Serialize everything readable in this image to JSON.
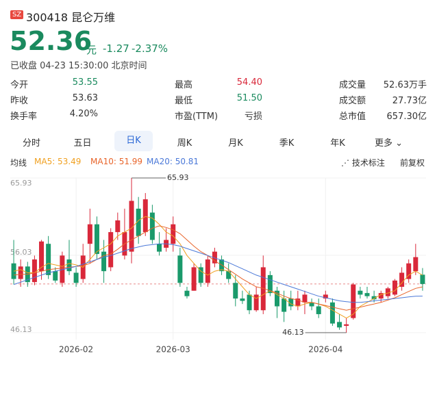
{
  "header": {
    "market": "SZ",
    "code": "300418",
    "name": "昆仑万维",
    "price": "52.36",
    "unit": "元",
    "change": "-1.27",
    "change_pct": "-2.37%",
    "status": "已收盘 04-23 15:30:00 北京时间"
  },
  "stats": [
    [
      {
        "label": "今开",
        "value": "53.55"
      },
      {
        "label": "最高",
        "value": "54.40"
      },
      {
        "label": "成交量",
        "value": "52.63万手"
      }
    ],
    [
      {
        "label": "昨收",
        "value": "53.63"
      },
      {
        "label": "最低",
        "value": "51.50"
      },
      {
        "label": "成交额",
        "value": "27.73亿"
      }
    ],
    [
      {
        "label": "换手率",
        "value": "4.20%"
      },
      {
        "label": "市盈(TTM)",
        "value": "亏损"
      },
      {
        "label": "总市值",
        "value": "657.30亿"
      }
    ]
  ],
  "tabs": [
    "分时",
    "五日",
    "日K",
    "周K",
    "月K",
    "季K",
    "年K",
    "更多"
  ],
  "selected_tab": "日K",
  "ma_title": "均线",
  "tools": [
    "技术标注",
    "前复权"
  ],
  "chart_data": {
    "type": "candlestick",
    "categories": [
      null,
      null,
      null,
      null,
      null,
      null,
      null,
      null,
      null,
      "2026-02",
      null,
      null,
      null,
      null,
      null,
      null,
      null,
      null,
      null,
      null,
      null,
      null,
      null,
      "2026-03",
      null,
      null,
      null,
      null,
      null,
      null,
      null,
      null,
      null,
      null,
      null,
      null,
      null,
      null,
      null,
      null,
      null,
      null,
      null,
      null,
      null,
      "2026-04",
      null,
      null,
      null,
      null,
      null,
      null,
      null,
      null,
      null,
      null,
      null,
      null,
      null,
      null
    ],
    "open": [
      55.0,
      53.0,
      54.6,
      52.6,
      54.0,
      57.5,
      54.0,
      52.5,
      55.5,
      53.8,
      53.0,
      57.5,
      60.0,
      56.5,
      54.5,
      59.0,
      56.0,
      56.5,
      62.0,
      59.0,
      61.5,
      57.5,
      57.0,
      57.5,
      56.0,
      51.5,
      51.5,
      54.5,
      52.5,
      55.0,
      55.5,
      54.0,
      52.5,
      50.5,
      51.0,
      49.0,
      49.0,
      53.5,
      51.5,
      50.5,
      50.5,
      49.5,
      50.0,
      50.0,
      49.5,
      50.5,
      50.0,
      47.5,
      47.0,
      48.0,
      51.5,
      51.2,
      50.8,
      50.5,
      50.8,
      51.0,
      52.0,
      53.0,
      54.0,
      53.55
    ],
    "high": [
      58.0,
      55.5,
      55.2,
      56.0,
      58.0,
      58.5,
      54.5,
      56.5,
      58.0,
      54.5,
      57.5,
      62.0,
      61.0,
      58.0,
      59.5,
      61.5,
      62.0,
      65.93,
      63.5,
      64.0,
      62.5,
      59.0,
      59.5,
      61.0,
      57.0,
      52.0,
      55.0,
      55.0,
      56.0,
      57.0,
      56.0,
      55.0,
      53.5,
      51.5,
      51.5,
      52.0,
      56.0,
      54.0,
      52.0,
      51.5,
      51.5,
      51.5,
      51.5,
      50.5,
      50.5,
      51.5,
      50.5,
      48.5,
      48.0,
      52.5,
      52.0,
      52.0,
      51.5,
      51.5,
      52.0,
      53.0,
      54.5,
      55.5,
      57.5,
      54.4
    ],
    "low": [
      52.3,
      52.0,
      52.0,
      52.2,
      52.9,
      53.0,
      52.5,
      52.0,
      53.5,
      52.0,
      52.5,
      55.0,
      55.5,
      52.5,
      54.0,
      58.0,
      55.5,
      55.0,
      57.5,
      58.5,
      57.5,
      56.0,
      56.5,
      56.5,
      52.0,
      50.5,
      51.5,
      52.0,
      52.0,
      54.5,
      53.5,
      52.5,
      49.5,
      49.8,
      48.5,
      48.8,
      48.5,
      50.8,
      48.0,
      47.5,
      49.0,
      49.0,
      48.5,
      49.0,
      48.0,
      50.0,
      47.0,
      46.5,
      46.13,
      47.8,
      50.5,
      50.5,
      50.0,
      50.0,
      50.5,
      50.8,
      51.5,
      52.5,
      53.5,
      51.5
    ],
    "close": [
      53.0,
      54.6,
      52.6,
      55.5,
      57.8,
      53.5,
      52.8,
      56.0,
      54.0,
      52.5,
      56.0,
      60.0,
      56.2,
      54.0,
      59.0,
      60.5,
      59.0,
      63.0,
      58.5,
      63.2,
      58.0,
      56.5,
      58.0,
      60.0,
      52.5,
      50.8,
      54.5,
      52.5,
      55.5,
      56.5,
      54.0,
      53.0,
      50.5,
      50.2,
      49.0,
      51.0,
      54.5,
      51.2,
      49.5,
      48.8,
      49.5,
      50.5,
      51.0,
      49.5,
      48.5,
      51.0,
      47.3,
      46.8,
      47.2,
      52.3,
      51.0,
      50.8,
      50.4,
      51.2,
      51.8,
      52.8,
      53.8,
      55.0,
      55.8,
      52.36
    ],
    "ma_series": [
      {
        "name": "MA5: 53.49",
        "color": "#f0a020",
        "values": [
          54.0,
          54.2,
          53.8,
          53.8,
          54.5,
          55.0,
          54.8,
          54.6,
          55.0,
          54.8,
          54.5,
          55.5,
          56.5,
          57.0,
          57.5,
          58.5,
          59.0,
          59.5,
          60.5,
          61.0,
          60.8,
          60.0,
          59.0,
          58.5,
          57.5,
          56.0,
          55.0,
          54.0,
          53.5,
          54.0,
          54.2,
          54.0,
          53.0,
          52.0,
          51.0,
          50.5,
          51.0,
          51.5,
          51.0,
          50.5,
          49.8,
          49.5,
          49.8,
          50.0,
          49.8,
          49.5,
          49.0,
          48.5,
          48.0,
          48.5,
          49.5,
          50.0,
          50.5,
          51.0,
          51.2,
          51.5,
          52.5,
          53.5,
          54.0,
          53.49
        ]
      },
      {
        "name": "MA10: 51.99",
        "color": "#e8642a",
        "values": [
          53.5,
          53.6,
          53.6,
          53.8,
          54.0,
          54.2,
          54.3,
          54.4,
          54.5,
          54.6,
          54.7,
          55.0,
          55.5,
          56.0,
          56.2,
          56.8,
          57.5,
          58.0,
          58.5,
          59.0,
          59.5,
          59.8,
          59.6,
          59.3,
          58.8,
          58.0,
          57.2,
          56.5,
          56.0,
          55.3,
          54.8,
          54.2,
          53.6,
          53.0,
          52.5,
          52.0,
          51.8,
          51.5,
          51.2,
          50.8,
          50.5,
          50.3,
          50.0,
          50.0,
          49.8,
          49.6,
          49.4,
          49.2,
          49.0,
          49.2,
          49.4,
          49.6,
          49.8,
          50.0,
          50.3,
          50.6,
          51.0,
          51.4,
          51.8,
          51.99
        ]
      },
      {
        "name": "MA20: 50.81",
        "color": "#4a78d8",
        "values": [
          52.3,
          52.6,
          52.9,
          53.2,
          53.5,
          53.8,
          54.0,
          54.2,
          54.4,
          54.6,
          54.9,
          55.2,
          55.5,
          55.8,
          56.0,
          56.3,
          56.6,
          56.9,
          57.1,
          57.3,
          57.4,
          57.5,
          57.5,
          57.4,
          57.2,
          56.9,
          56.6,
          56.3,
          56.0,
          55.7,
          55.4,
          55.1,
          54.7,
          54.3,
          53.9,
          53.5,
          53.2,
          52.9,
          52.6,
          52.3,
          52.0,
          51.7,
          51.4,
          51.1,
          50.8,
          50.6,
          50.4,
          50.2,
          50.1,
          50.0,
          50.0,
          50.1,
          50.2,
          50.3,
          50.4,
          50.5,
          50.6,
          50.7,
          50.8,
          50.81
        ]
      }
    ],
    "up_color": "#d9283a",
    "down_color": "#1a9a6b",
    "ylim": [
      46.13,
      65.93
    ],
    "yticks": [
      46.13,
      56.03,
      65.93
    ],
    "max_label": 65.93,
    "min_label": 46.13
  }
}
